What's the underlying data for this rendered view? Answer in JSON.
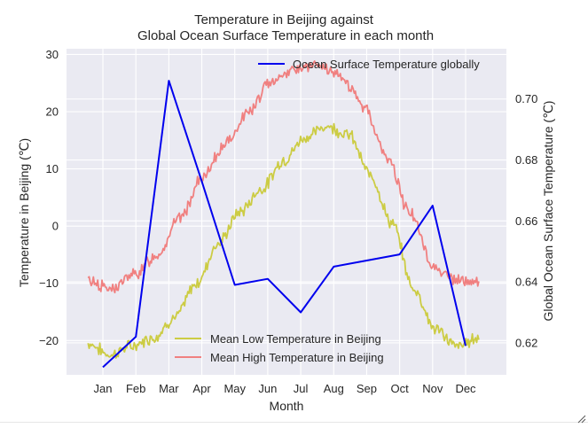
{
  "chart_data": {
    "type": "line",
    "title_line1": "Temperature in Beijing against",
    "title_line2": "Global Ocean Surface Temperature in each month",
    "xlabel": "Month",
    "ylabel_left": "Temperature in Beijing (℃)",
    "ylabel_right": "Global Ocean Surface Temperature (℃)",
    "grid": true,
    "x_categories": [
      "Jan",
      "Feb",
      "Mar",
      "Apr",
      "May",
      "Jun",
      "Jul",
      "Aug",
      "Sep",
      "Oct",
      "Nov",
      "Dec"
    ],
    "ylim_left": [
      -26,
      31
    ],
    "yticks_left": [
      -20,
      -10,
      0,
      10,
      20,
      30
    ],
    "ylim_right": [
      0.6095,
      0.7165
    ],
    "yticks_right": [
      0.62,
      0.64,
      0.66,
      0.68,
      0.7
    ],
    "ytick_labels_right": [
      "0.62",
      "0.64",
      "0.66",
      "0.68",
      "0.70"
    ],
    "series": [
      {
        "name": "Mean Low Temperature in Beijing",
        "axis": "left",
        "color": "#cccc44",
        "x_range_months": [
          0.55,
          12.4
        ],
        "anchor_values": [
          -20.5,
          -22.5,
          -21.0,
          -19.5,
          -16.0,
          -10.0,
          -3.0,
          2.5,
          6.5,
          11.5,
          15.5,
          17.5,
          16.0,
          9.0,
          0.5,
          -11.0,
          -18.0,
          -21.0,
          -19.5
        ]
      },
      {
        "name": "Mean High Temperature in Beijing",
        "axis": "left",
        "color": "#f08080",
        "x_range_months": [
          0.55,
          12.4
        ],
        "anchor_values": [
          -9.5,
          -11.0,
          -8.5,
          -5.0,
          1.5,
          8.5,
          14.5,
          20.0,
          25.5,
          27.5,
          28.0,
          26.0,
          21.0,
          12.0,
          2.5,
          -7.0,
          -9.5,
          -10.0
        ]
      },
      {
        "name": "Ocean Surface Temperature globally",
        "axis": "right",
        "color": "#0000ee",
        "values": [
          0.612,
          0.622,
          0.706,
          0.673,
          0.639,
          0.641,
          0.63,
          0.645,
          0.647,
          0.649,
          0.665,
          0.619
        ]
      }
    ],
    "legends": [
      {
        "location": "upper right",
        "entries": [
          "Ocean Surface Temperature globally"
        ]
      },
      {
        "location": "lower center",
        "entries": [
          "Mean Low Temperature in Beijing",
          "Mean High Temperature in Beijing"
        ]
      }
    ]
  }
}
